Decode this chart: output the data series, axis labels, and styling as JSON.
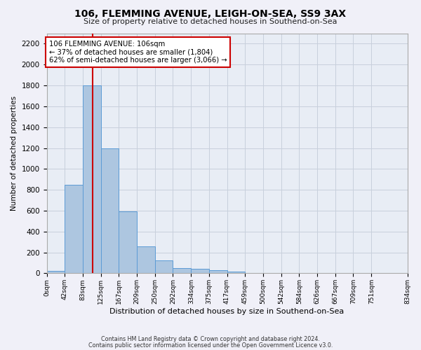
{
  "title": "106, FLEMMING AVENUE, LEIGH-ON-SEA, SS9 3AX",
  "subtitle": "Size of property relative to detached houses in Southend-on-Sea",
  "xlabel": "Distribution of detached houses by size in Southend-on-Sea",
  "ylabel": "Number of detached properties",
  "bar_values": [
    25,
    845,
    1800,
    1200,
    590,
    260,
    125,
    50,
    45,
    32,
    18,
    0,
    0,
    0,
    0,
    0,
    0,
    0,
    0
  ],
  "bin_edges": [
    0,
    42,
    83,
    125,
    167,
    209,
    250,
    292,
    334,
    375,
    417,
    459,
    500,
    542,
    584,
    626,
    667,
    709,
    751,
    834
  ],
  "tick_labels": [
    "0sqm",
    "42sqm",
    "83sqm",
    "125sqm",
    "167sqm",
    "209sqm",
    "250sqm",
    "292sqm",
    "334sqm",
    "375sqm",
    "417sqm",
    "459sqm",
    "500sqm",
    "542sqm",
    "584sqm",
    "626sqm",
    "667sqm",
    "709sqm",
    "751sqm",
    "834sqm"
  ],
  "bar_color": "#adc6e0",
  "bar_edge_color": "#5b9bd5",
  "grid_color": "#c8d0dc",
  "bg_color": "#e8edf5",
  "fig_color": "#f0f0f8",
  "vline_x": 106,
  "vline_color": "#cc0000",
  "annotation_text": "106 FLEMMING AVENUE: 106sqm\n← 37% of detached houses are smaller (1,804)\n62% of semi-detached houses are larger (3,066) →",
  "annotation_box_color": "#ffffff",
  "annotation_border_color": "#cc0000",
  "footer_line1": "Contains HM Land Registry data © Crown copyright and database right 2024.",
  "footer_line2": "Contains public sector information licensed under the Open Government Licence v3.0.",
  "ylim": [
    0,
    2300
  ],
  "yticks": [
    0,
    200,
    400,
    600,
    800,
    1000,
    1200,
    1400,
    1600,
    1800,
    2000,
    2200
  ]
}
